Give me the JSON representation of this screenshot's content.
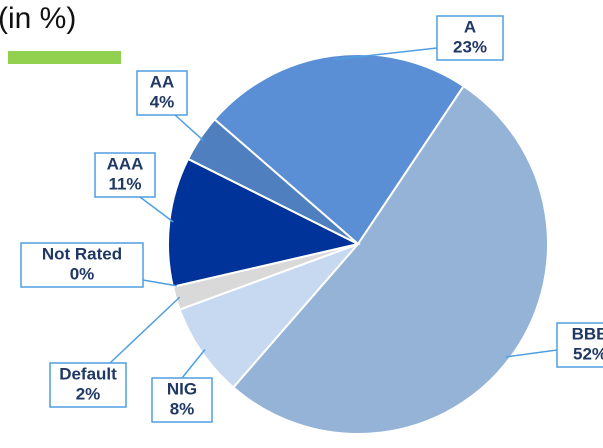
{
  "chart_data": {
    "type": "pie",
    "title": "(in %)",
    "categories": [
      "A",
      "BBB",
      "NIG",
      "Default",
      "Not Rated",
      "AAA",
      "AA"
    ],
    "values": [
      23,
      52,
      8,
      2,
      0,
      11,
      4
    ],
    "value_labels": [
      "23%",
      "52%",
      "8%",
      "2%",
      "0%",
      "11%",
      "4%"
    ],
    "colors": [
      "#5a8fd6",
      "#95b3d7",
      "#c6d9f1",
      "#d9d9d9",
      "#f2f2f2",
      "#003399",
      "#4f7fbf"
    ]
  }
}
